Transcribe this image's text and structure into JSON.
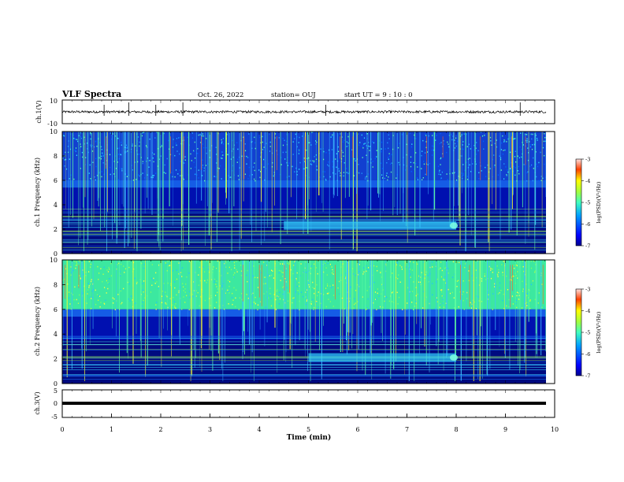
{
  "header": {
    "title": "VLF Spectra",
    "date": "Oct. 26, 2022",
    "station": "station= OUJ",
    "start": "start UT =  9 : 10 : 0"
  },
  "chart_data": [
    {
      "type": "line",
      "name": "ch1-waveform",
      "ylabel": "ch.1(V)",
      "ylim": [
        -10,
        10
      ],
      "yticks": [
        "10",
        "-10"
      ],
      "xlim": [
        0,
        10
      ],
      "description_values": {
        "baseline": 0,
        "noise_amplitude": 2,
        "spikes_at_min": [
          0.85,
          1.35,
          1.9,
          2.45,
          5.35,
          9.3
        ]
      }
    },
    {
      "type": "heatmap",
      "name": "ch1-spectrogram",
      "ylabel": "ch.1 Frequency (kHz)",
      "ylim": [
        0,
        10
      ],
      "yticks": [
        "10",
        "8",
        "6",
        "4",
        "2",
        "0"
      ],
      "xlim": [
        0,
        10
      ],
      "colorbar": {
        "label": "log(PSD)(V²/Hz)",
        "range": [
          -7,
          -3
        ],
        "ticks": [
          "-3",
          "-4",
          "-5",
          "-6",
          "-7"
        ]
      },
      "features": {
        "band_edge_khz": 6.0,
        "hiss_track": {
          "start_min": 4.5,
          "end_min": 8.0,
          "freq_khz": 2.3
        }
      }
    },
    {
      "type": "heatmap",
      "name": "ch2-spectrogram",
      "ylabel": "ch.2 Frequency (kHz)",
      "ylim": [
        0,
        10
      ],
      "yticks": [
        "10",
        "8",
        "6",
        "4",
        "2",
        "0"
      ],
      "xlim": [
        0,
        10
      ],
      "colorbar": {
        "label": "log(PSD)(V²/Hz)",
        "range": [
          -7,
          -3
        ],
        "ticks": [
          "-3",
          "-4",
          "-5",
          "-6",
          "-7"
        ]
      },
      "features": {
        "band_edge_khz": 6.0,
        "hiss_track": {
          "start_min": 5.0,
          "end_min": 8.0,
          "freq_khz": 2.1
        }
      }
    },
    {
      "type": "line",
      "name": "ch3-signal",
      "ylabel": "ch.3(V)",
      "ylim": [
        -5,
        5
      ],
      "yticks": [
        "5",
        "0",
        "-5"
      ],
      "xlim": [
        0,
        10
      ],
      "xlabel": "Time (min)",
      "xticks": [
        "0",
        "1",
        "2",
        "3",
        "4",
        "5",
        "6",
        "7",
        "8",
        "9",
        "10"
      ],
      "values_constant": -0.5
    }
  ],
  "colors": {
    "jet": [
      "#00008f",
      "#0000ff",
      "#0080ff",
      "#00ffff",
      "#80ff80",
      "#ffff00",
      "#ff8000",
      "#ff0000",
      "#800000"
    ],
    "background": "#ffffff",
    "ink": "#000000"
  }
}
